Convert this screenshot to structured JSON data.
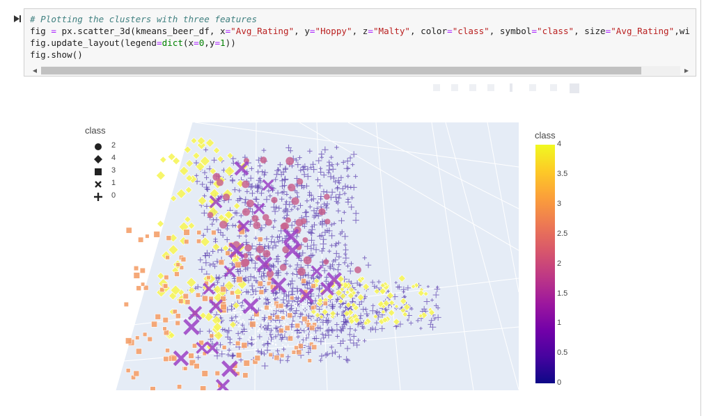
{
  "cell": {
    "line1": "# Plotting the clusters with three features",
    "line2": {
      "p1": "fig ",
      "op1": "=",
      "p2": " px.scatter_3d(kmeans_beer_df, x",
      "op2": "=",
      "s1": "\"Avg_Rating\"",
      "p3": ", y",
      "op3": "=",
      "s2": "\"Hoppy\"",
      "p4": ", z",
      "op4": "=",
      "s3": "\"Malty\"",
      "p5": ", color",
      "op5": "=",
      "s4": "\"class\"",
      "p6": ", symbol",
      "op6": "=",
      "s5": "\"class\"",
      "p7": ", size",
      "op7": "=",
      "s6": "\"Avg_Rating\"",
      "p8": ",wi"
    },
    "line3": {
      "p1": "fig.update_layout(legend",
      "op1": "=",
      "kw": "dict",
      "p2": "(x",
      "op2": "=",
      "n1": "0",
      "p3": ",y",
      "op3": "=",
      "n2": "1",
      "p4": "))"
    },
    "line4": "fig.show()"
  },
  "legend": {
    "title": "class",
    "items": [
      {
        "label": "2",
        "symbol": "circle"
      },
      {
        "label": "4",
        "symbol": "diamond"
      },
      {
        "label": "3",
        "symbol": "square"
      },
      {
        "label": "1",
        "symbol": "x"
      },
      {
        "label": "0",
        "symbol": "cross"
      }
    ]
  },
  "colorbar": {
    "title": "class",
    "ticks": [
      "4",
      "3.5",
      "3",
      "2.5",
      "2",
      "1.5",
      "1",
      "0.5",
      "0"
    ],
    "colors": [
      "#0d0887",
      "#46039f",
      "#7201a8",
      "#9c179e",
      "#bd3786",
      "#d8576b",
      "#ed7953",
      "#fb9f3a",
      "#fdca26",
      "#f0f921"
    ]
  },
  "class_colors": {
    "0": "#5b3fae",
    "1": "#9b3fc4",
    "2": "#c9648e",
    "3": "#f4a06a",
    "4": "#f6f55a"
  }
}
